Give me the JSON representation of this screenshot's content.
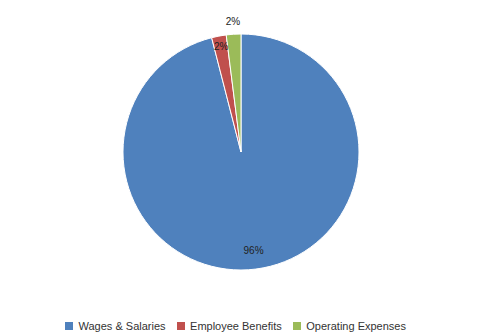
{
  "chart_data": {
    "type": "pie",
    "categories": [
      "Wages & Salaries",
      "Employee Benefits",
      "Operating Expenses"
    ],
    "values": [
      96,
      2,
      2
    ],
    "value_labels": [
      "96%",
      "2%",
      "2%"
    ],
    "colors": [
      "#4f81bd",
      "#c0504d",
      "#9bbb59"
    ],
    "data_labels": true,
    "legend": "bottom"
  }
}
